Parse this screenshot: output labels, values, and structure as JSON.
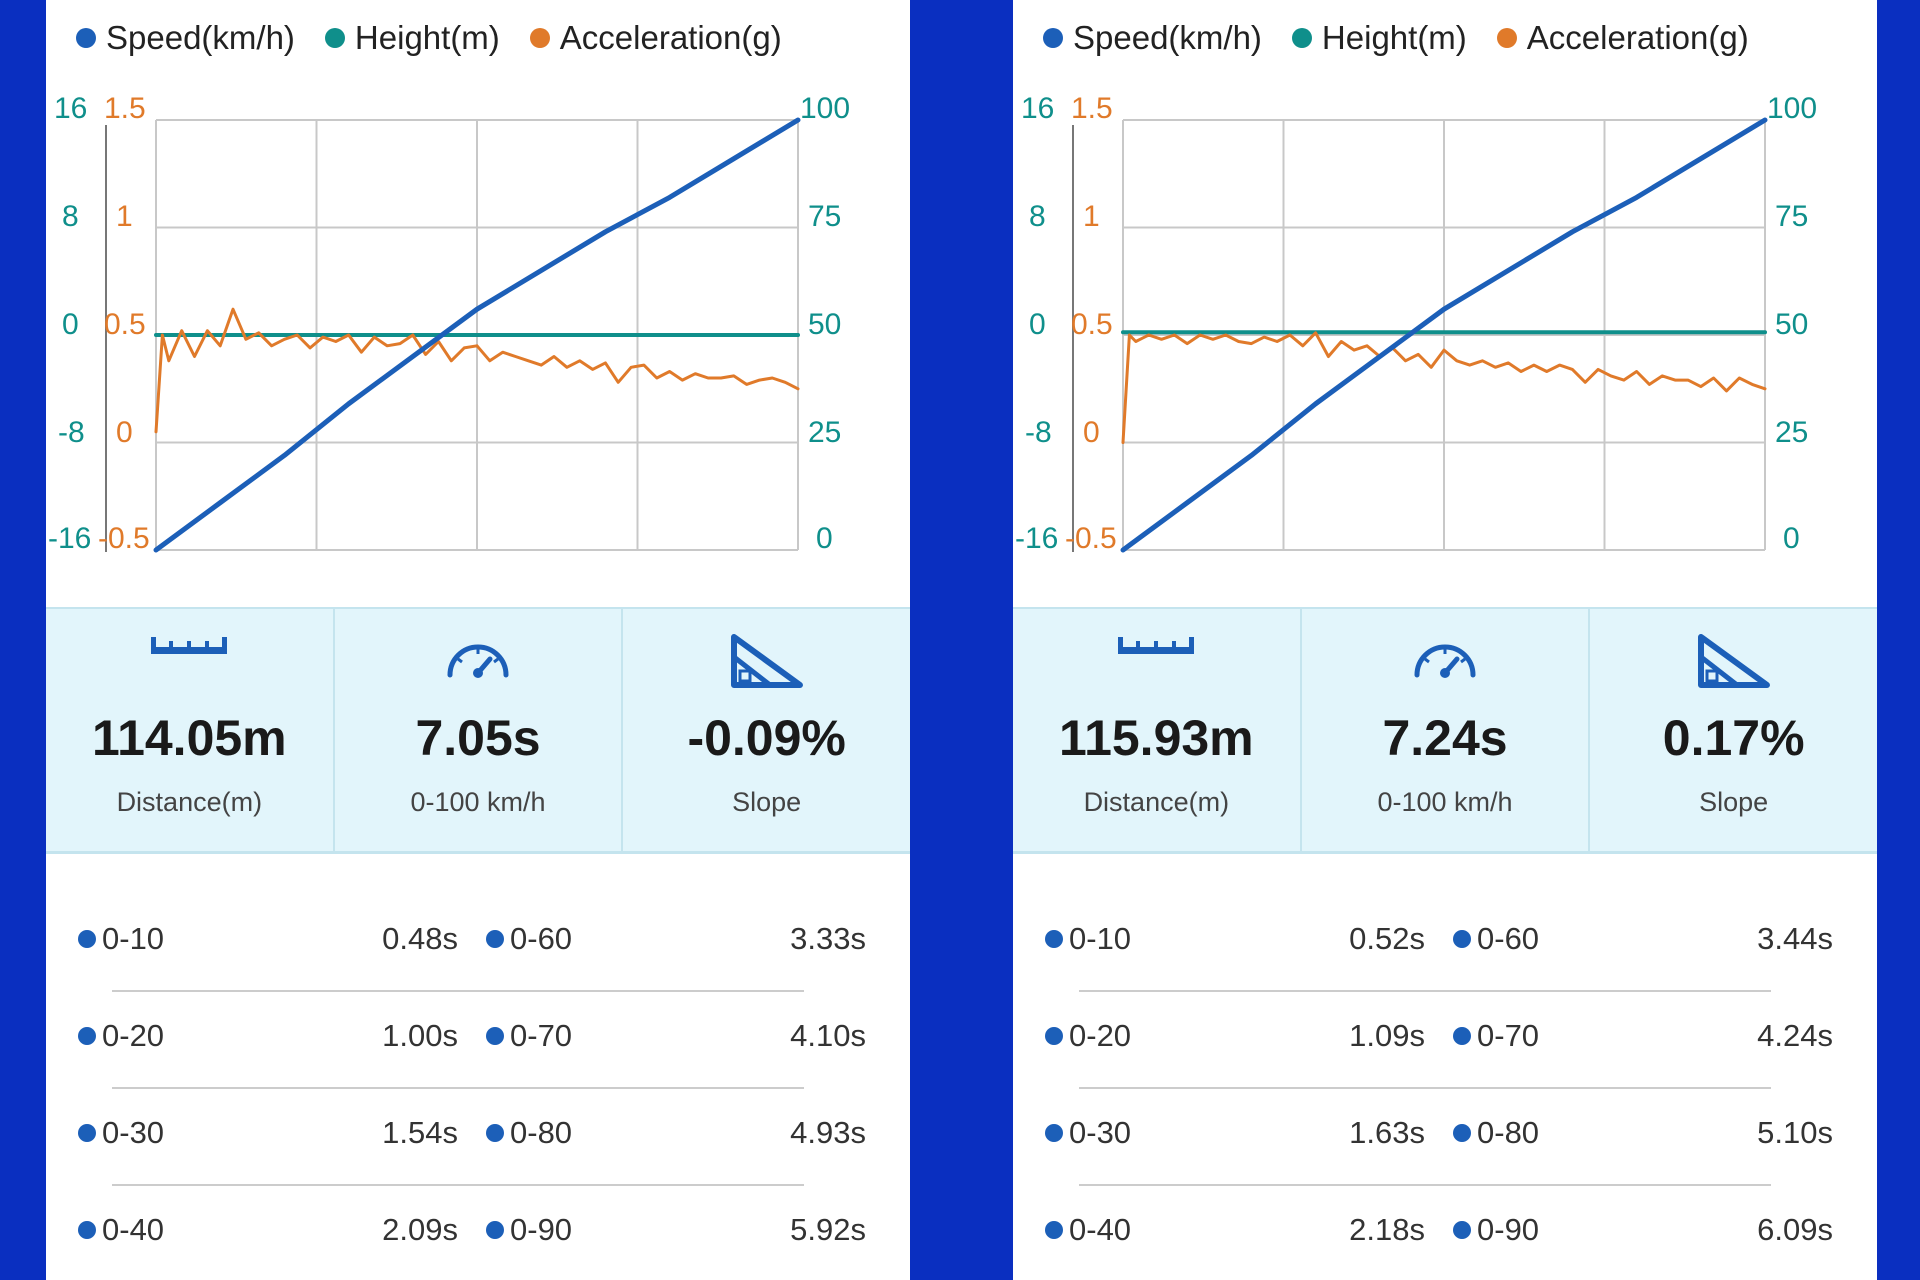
{
  "colors": {
    "speed": "#1c5fb8",
    "height": "#0f8f8b",
    "acceleration": "#e07a2a",
    "background": "#0a2fc0",
    "stats_background": "#e2f5fb"
  },
  "legend": [
    {
      "label": "Speed(km/h)",
      "color": "#1c5fb8"
    },
    {
      "label": "Height(m)",
      "color": "#0f8f8b"
    },
    {
      "label": "Acceleration(g)",
      "color": "#e07a2a"
    }
  ],
  "icons": {
    "distance": "ruler-icon",
    "time": "speedometer-icon",
    "slope": "slope-icon"
  },
  "stat_labels": {
    "distance": "Distance(m)",
    "time": "0-100 km/h",
    "slope": "Slope"
  },
  "axis_ticks": {
    "height": [
      "16",
      "8",
      "0",
      "-8",
      "-16"
    ],
    "acceleration": [
      "1.5",
      "1",
      "0.5",
      "0",
      "-0.5"
    ],
    "speed": [
      "100",
      "75",
      "50",
      "25",
      "0"
    ]
  },
  "panels": [
    {
      "stats": {
        "distance": "114.05m",
        "time": "7.05s",
        "slope": "-0.09%"
      },
      "splits": [
        {
          "a_label": "0-10",
          "a_time": "0.48s",
          "b_label": "0-60",
          "b_time": "3.33s"
        },
        {
          "a_label": "0-20",
          "a_time": "1.00s",
          "b_label": "0-70",
          "b_time": "4.10s"
        },
        {
          "a_label": "0-30",
          "a_time": "1.54s",
          "b_label": "0-80",
          "b_time": "4.93s"
        },
        {
          "a_label": "0-40",
          "a_time": "2.09s",
          "b_label": "0-90",
          "b_time": "5.92s"
        }
      ]
    },
    {
      "stats": {
        "distance": "115.93m",
        "time": "7.24s",
        "slope": "0.17%"
      },
      "splits": [
        {
          "a_label": "0-10",
          "a_time": "0.52s",
          "b_label": "0-60",
          "b_time": "3.44s"
        },
        {
          "a_label": "0-20",
          "a_time": "1.09s",
          "b_label": "0-70",
          "b_time": "4.24s"
        },
        {
          "a_label": "0-30",
          "a_time": "1.63s",
          "b_label": "0-80",
          "b_time": "5.10s"
        },
        {
          "a_label": "0-40",
          "a_time": "2.18s",
          "b_label": "0-90",
          "b_time": "6.09s"
        }
      ]
    }
  ],
  "chart_data": [
    {
      "type": "line",
      "x_range": [
        0,
        1
      ],
      "y_axes": {
        "height": {
          "range": [
            -16,
            16
          ],
          "ticks": [
            16,
            8,
            0,
            -8,
            -16
          ]
        },
        "acceleration": {
          "range": [
            -0.5,
            1.5
          ],
          "ticks": [
            1.5,
            1,
            0.5,
            0,
            -0.5
          ]
        },
        "speed": {
          "range": [
            0,
            100
          ],
          "ticks": [
            100,
            75,
            50,
            25,
            0
          ]
        }
      },
      "grid": true,
      "legend_position": "top",
      "series": [
        {
          "name": "Speed(km/h)",
          "axis": "speed",
          "x": [
            0,
            0.1,
            0.2,
            0.3,
            0.4,
            0.5,
            0.6,
            0.7,
            0.8,
            0.9,
            1.0
          ],
          "y": [
            0,
            11,
            22,
            34,
            45,
            56,
            65,
            74,
            82,
            91,
            100
          ]
        },
        {
          "name": "Height(m)",
          "axis": "height",
          "x": [
            0,
            1
          ],
          "y": [
            0,
            0
          ]
        },
        {
          "name": "Acceleration(g)",
          "axis": "acceleration",
          "x": [
            0,
            0.01,
            0.02,
            0.04,
            0.06,
            0.08,
            0.1,
            0.12,
            0.14,
            0.16,
            0.18,
            0.2,
            0.22,
            0.24,
            0.26,
            0.28,
            0.3,
            0.32,
            0.34,
            0.36,
            0.38,
            0.4,
            0.42,
            0.44,
            0.46,
            0.48,
            0.5,
            0.52,
            0.54,
            0.56,
            0.58,
            0.6,
            0.62,
            0.64,
            0.66,
            0.68,
            0.7,
            0.72,
            0.74,
            0.76,
            0.78,
            0.8,
            0.82,
            0.84,
            0.86,
            0.88,
            0.9,
            0.92,
            0.94,
            0.96,
            0.98,
            1.0
          ],
          "y": [
            0.05,
            0.5,
            0.38,
            0.52,
            0.4,
            0.52,
            0.45,
            0.62,
            0.48,
            0.51,
            0.45,
            0.48,
            0.5,
            0.44,
            0.49,
            0.47,
            0.5,
            0.42,
            0.49,
            0.45,
            0.46,
            0.5,
            0.41,
            0.47,
            0.38,
            0.44,
            0.45,
            0.38,
            0.42,
            0.4,
            0.38,
            0.36,
            0.4,
            0.35,
            0.38,
            0.34,
            0.37,
            0.28,
            0.35,
            0.36,
            0.3,
            0.33,
            0.29,
            0.32,
            0.3,
            0.3,
            0.31,
            0.27,
            0.29,
            0.3,
            0.28,
            0.25
          ]
        }
      ]
    },
    {
      "type": "line",
      "x_range": [
        0,
        1
      ],
      "y_axes": {
        "height": {
          "range": [
            -16,
            16
          ],
          "ticks": [
            16,
            8,
            0,
            -8,
            -16
          ]
        },
        "acceleration": {
          "range": [
            -0.5,
            1.5
          ],
          "ticks": [
            1.5,
            1,
            0.5,
            0,
            -0.5
          ]
        },
        "speed": {
          "range": [
            0,
            100
          ],
          "ticks": [
            100,
            75,
            50,
            25,
            0
          ]
        }
      },
      "grid": true,
      "legend_position": "top",
      "series": [
        {
          "name": "Speed(km/h)",
          "axis": "speed",
          "x": [
            0,
            0.1,
            0.2,
            0.3,
            0.4,
            0.5,
            0.6,
            0.7,
            0.8,
            0.9,
            1.0
          ],
          "y": [
            0,
            11,
            22,
            34,
            45,
            56,
            65,
            74,
            82,
            91,
            100
          ]
        },
        {
          "name": "Height(m)",
          "axis": "height",
          "x": [
            0,
            0.5,
            1
          ],
          "y": [
            0.2,
            0.2,
            0.2
          ]
        },
        {
          "name": "Acceleration(g)",
          "axis": "acceleration",
          "x": [
            0,
            0.01,
            0.02,
            0.04,
            0.06,
            0.08,
            0.1,
            0.12,
            0.14,
            0.16,
            0.18,
            0.2,
            0.22,
            0.24,
            0.26,
            0.28,
            0.3,
            0.32,
            0.34,
            0.36,
            0.38,
            0.4,
            0.42,
            0.44,
            0.46,
            0.48,
            0.5,
            0.52,
            0.54,
            0.56,
            0.58,
            0.6,
            0.62,
            0.64,
            0.66,
            0.68,
            0.7,
            0.72,
            0.74,
            0.76,
            0.78,
            0.8,
            0.82,
            0.84,
            0.86,
            0.88,
            0.9,
            0.92,
            0.94,
            0.96,
            0.98,
            1.0
          ],
          "y": [
            0.0,
            0.5,
            0.47,
            0.5,
            0.48,
            0.5,
            0.46,
            0.5,
            0.48,
            0.5,
            0.47,
            0.46,
            0.49,
            0.47,
            0.5,
            0.45,
            0.51,
            0.4,
            0.47,
            0.43,
            0.45,
            0.4,
            0.44,
            0.38,
            0.41,
            0.35,
            0.43,
            0.38,
            0.36,
            0.38,
            0.35,
            0.37,
            0.33,
            0.36,
            0.33,
            0.36,
            0.34,
            0.28,
            0.34,
            0.31,
            0.29,
            0.33,
            0.27,
            0.31,
            0.29,
            0.29,
            0.26,
            0.3,
            0.24,
            0.3,
            0.27,
            0.25
          ]
        }
      ]
    }
  ]
}
